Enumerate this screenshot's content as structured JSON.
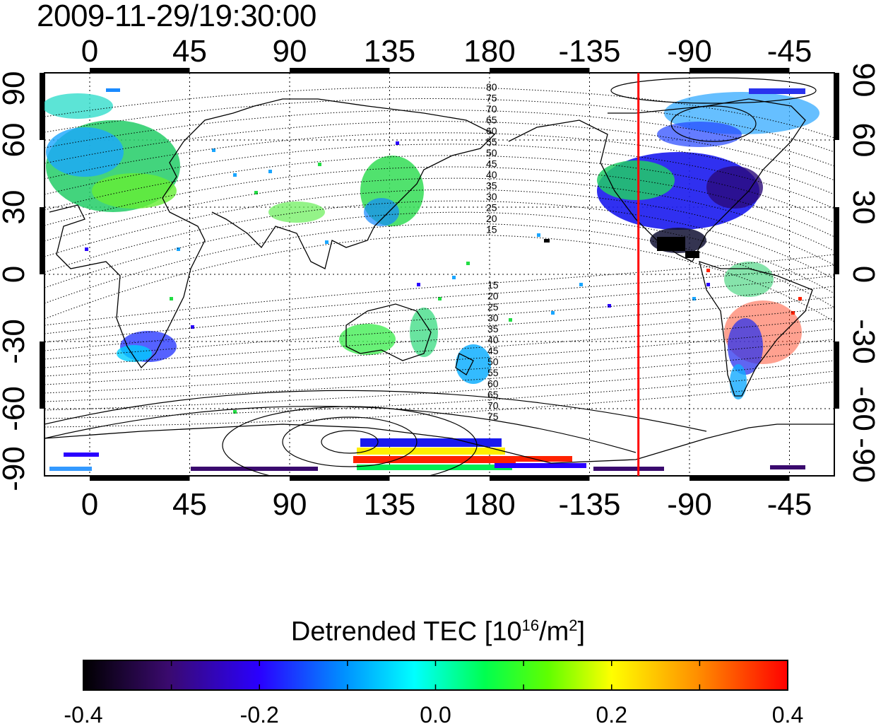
{
  "timestamp": "2009-11-29/19:30:00",
  "map": {
    "x_ticks": [
      "0",
      "45",
      "90",
      "135",
      "180",
      "-135",
      "-90",
      "-45"
    ],
    "y_ticks_left": [
      "90",
      "60",
      "30",
      "0",
      "-30",
      "-60",
      "-90"
    ],
    "y_ticks_right": [
      "90",
      "60",
      "30",
      "0",
      "-30",
      "-60",
      "-90"
    ],
    "contour_labels_north": [
      "80",
      "75",
      "70",
      "65",
      "60",
      "55",
      "50",
      "45",
      "40",
      "35",
      "30",
      "25",
      "20",
      "15"
    ],
    "contour_labels_south": [
      "15",
      "20",
      "25",
      "30",
      "35",
      "40",
      "45",
      "50",
      "55",
      "60",
      "65",
      "70",
      "75"
    ],
    "terminator_longitude": -113,
    "terminator_color": "#ff0000"
  },
  "colorbar": {
    "title_main": "Detrended TEC  [10",
    "title_exp1": "16",
    "title_mid": "/m",
    "title_exp2": "2",
    "title_end": "]",
    "tick_labels": [
      "-0.4",
      "-0.2",
      "0.0",
      "0.2",
      "0.4"
    ],
    "min": -0.4,
    "max": 0.4,
    "colors": [
      "#000000",
      "#3a0a6e",
      "#2a00ff",
      "#0090ff",
      "#00ffff",
      "#00ff50",
      "#60ff00",
      "#ffff00",
      "#ff9000",
      "#ff0000"
    ]
  }
}
